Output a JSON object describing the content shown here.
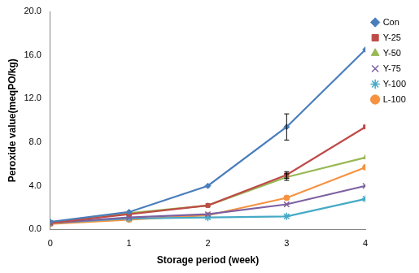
{
  "chart_data": {
    "type": "line",
    "x_label": "Storage period (week)",
    "y_label": "Peroxide value(meqPO/kg)",
    "x": [
      0,
      1,
      2,
      3,
      4
    ],
    "xlim": [
      0,
      4
    ],
    "xticks": [
      0,
      1,
      2,
      3,
      4
    ],
    "ylim": [
      0,
      20
    ],
    "yticks": [
      {
        "value": 0,
        "label": "0.0"
      },
      {
        "value": 4,
        "label": "4.0"
      },
      {
        "value": 8,
        "label": "8.0"
      },
      {
        "value": 12,
        "label": "12.0"
      },
      {
        "value": 16,
        "label": "16.0"
      },
      {
        "value": 20,
        "label": "20.0"
      }
    ],
    "grid": false,
    "legend": "right",
    "series": [
      {
        "name": "Con",
        "color": "#4a7ebb",
        "marker": "diamond",
        "values": [
          0.7,
          1.6,
          4.0,
          9.4,
          16.5
        ],
        "errors": [
          null,
          null,
          null,
          1.2,
          null
        ]
      },
      {
        "name": "Y-25",
        "color": "#be4b48",
        "marker": "square",
        "values": [
          0.6,
          1.4,
          2.2,
          5.0,
          9.4
        ],
        "errors": [
          null,
          null,
          null,
          0.3,
          null
        ]
      },
      {
        "name": "Y-50",
        "color": "#98b954",
        "marker": "triangle",
        "values": [
          0.6,
          1.5,
          2.2,
          4.8,
          6.6
        ],
        "errors": [
          null,
          null,
          null,
          0.3,
          null
        ]
      },
      {
        "name": "Y-75",
        "color": "#7d60a0",
        "marker": "x",
        "values": [
          0.6,
          1.1,
          1.4,
          2.3,
          4.0
        ]
      },
      {
        "name": "Y-100",
        "color": "#46aac5",
        "marker": "star",
        "values": [
          0.6,
          1.0,
          1.1,
          1.2,
          2.8
        ]
      },
      {
        "name": "L-100",
        "color": "#f69240",
        "marker": "circle",
        "values": [
          0.5,
          0.9,
          1.3,
          2.9,
          5.7
        ]
      }
    ]
  }
}
